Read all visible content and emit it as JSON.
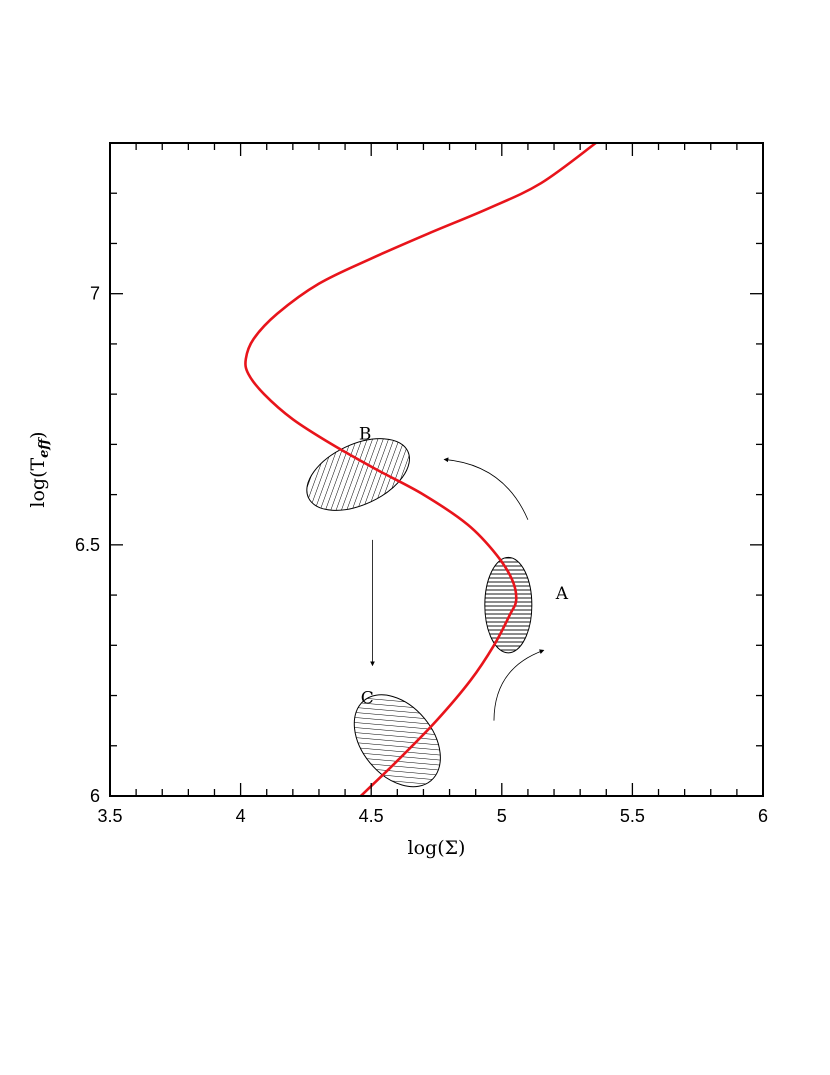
{
  "chart_data": {
    "type": "line",
    "title": "",
    "xlabel": "log(Σ)",
    "ylabel_main": "log(T",
    "ylabel_sub": "eff",
    "ylabel_close": ")",
    "xlim": [
      3.5,
      6.0
    ],
    "ylim": [
      6.0,
      7.3
    ],
    "x_ticks": [
      {
        "value": 3.5,
        "label": "3.5"
      },
      {
        "value": 4.0,
        "label": "4"
      },
      {
        "value": 4.5,
        "label": "4.5"
      },
      {
        "value": 5.0,
        "label": "5"
      },
      {
        "value": 5.5,
        "label": "5.5"
      },
      {
        "value": 6.0,
        "label": "6"
      }
    ],
    "y_ticks": [
      {
        "value": 6.0,
        "label": "6"
      },
      {
        "value": 6.5,
        "label": "6.5"
      },
      {
        "value": 7.0,
        "label": "7"
      }
    ],
    "x_minor_step": 0.1,
    "y_minor_step": 0.1,
    "grid": false,
    "series": [
      {
        "color": "#e8141b",
        "x": [
          4.44,
          4.6,
          4.75,
          4.88,
          4.97,
          5.03,
          5.055,
          5.04,
          4.98,
          4.87,
          4.7,
          4.52,
          4.35,
          4.2,
          4.09,
          4.03,
          4.02,
          4.05,
          4.14,
          4.3,
          4.5,
          4.72,
          4.95,
          5.15,
          5.36
        ],
        "y": [
          5.99,
          6.07,
          6.15,
          6.23,
          6.3,
          6.36,
          6.39,
          6.43,
          6.48,
          6.54,
          6.6,
          6.65,
          6.7,
          6.75,
          6.8,
          6.84,
          6.87,
          6.91,
          6.96,
          7.02,
          7.07,
          7.12,
          7.17,
          7.22,
          7.3
        ]
      }
    ],
    "regions": [
      {
        "label": "A",
        "cx": 5.025,
        "cy": 6.38,
        "rx": 0.09,
        "ry": 0.095,
        "rotation_deg": 0,
        "hatch": "horizontal"
      },
      {
        "label": "B",
        "cx": 4.45,
        "cy": 6.64,
        "rx": 0.21,
        "ry": 0.06,
        "rotation_deg": -25,
        "hatch": "diagonal"
      },
      {
        "label": "C",
        "cx": 4.6,
        "cy": 6.11,
        "rx": 0.2,
        "ry": 0.07,
        "rotation_deg": 50,
        "hatch": "diagonal"
      }
    ],
    "arrows": [
      {
        "from": [
          4.97,
          6.15
        ],
        "to": [
          5.16,
          6.29
        ],
        "curve": -0.35
      },
      {
        "from": [
          5.1,
          6.55
        ],
        "to": [
          4.78,
          6.67
        ],
        "curve": 0.3
      },
      {
        "from": [
          4.505,
          6.51
        ],
        "to": [
          4.505,
          6.26
        ],
        "curve": 0
      }
    ]
  }
}
